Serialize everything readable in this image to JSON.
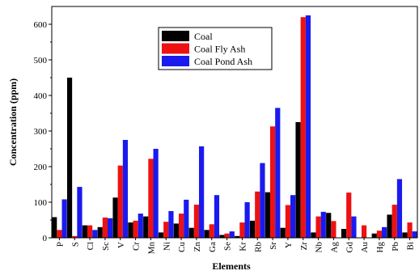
{
  "chart_data": {
    "type": "bar",
    "xlabel": "Elements",
    "ylabel": "Concentration (ppm)",
    "ylim": [
      0,
      650
    ],
    "yticks": [
      0,
      100,
      200,
      300,
      400,
      500,
      600
    ],
    "grid": false,
    "legend_position": "top-center",
    "categories": [
      "P",
      "S",
      "Cl",
      "Sc",
      "V",
      "Cr",
      "Mn",
      "Ni",
      "Cu",
      "Zn",
      "Ga",
      "Se",
      "Kr",
      "Rb",
      "Sr",
      "Y",
      "Zr",
      "Nb",
      "Ag",
      "Gd",
      "Au",
      "Hg",
      "Pb",
      "Bi"
    ],
    "series": [
      {
        "name": "Coal",
        "color": "#000000",
        "values": [
          58,
          450,
          35,
          30,
          113,
          43,
          60,
          15,
          40,
          28,
          22,
          8,
          5,
          48,
          128,
          28,
          325,
          15,
          70,
          25,
          0,
          12,
          65,
          15
        ]
      },
      {
        "name": "Coal Fly Ash",
        "color": "#ee1111",
        "values": [
          22,
          5,
          35,
          57,
          203,
          48,
          222,
          45,
          68,
          93,
          38,
          12,
          43,
          130,
          313,
          92,
          620,
          60,
          47,
          127,
          35,
          20,
          93,
          43
        ]
      },
      {
        "name": "Coal Pond Ash",
        "color": "#1a1aee",
        "values": [
          108,
          143,
          22,
          55,
          275,
          68,
          250,
          75,
          107,
          257,
          120,
          18,
          100,
          210,
          365,
          120,
          625,
          73,
          0,
          60,
          0,
          30,
          165,
          18
        ]
      }
    ]
  }
}
